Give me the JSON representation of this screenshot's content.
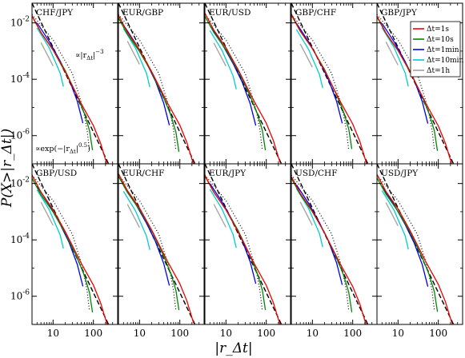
{
  "chart_data": {
    "type": "line",
    "layout": "2 rows x 5 columns of log-log panels, shared axes",
    "xlabel": "|r_Δt|",
    "ylabel": "P(X>|r_Δt|)",
    "xscale": "log",
    "yscale": "log",
    "xlim": [
      3,
      400
    ],
    "ylim": [
      1e-07,
      0.05
    ],
    "x_tick_labels": [
      "10",
      "100"
    ],
    "y_tick_labels": [
      "10^-2",
      "10^-4",
      "10^-6"
    ],
    "panels": [
      "CHF/JPY",
      "EUR/GBP",
      "EUR/USD",
      "GBP/CHF",
      "GBP/JPY",
      "GBP/USD",
      "EUR/CHF",
      "EUR/JPY",
      "USD/CHF",
      "USD/JPY"
    ],
    "legend": {
      "placement": "top-right of GBP/JPY panel",
      "entries": [
        {
          "label": "Δt=1s",
          "color": "#ee0000"
        },
        {
          "label": "Δt=10s",
          "color": "#008800"
        },
        {
          "label": "Δt=1min",
          "color": "#0000ee"
        },
        {
          "label": "Δt=10min",
          "color": "#00cccc"
        },
        {
          "label": "Δt=1h",
          "color": "#a0a0a0"
        }
      ]
    },
    "annotations": {
      "power_law": "∝|r_Δt|^-3",
      "stretched_exp": "∝exp(-|r_Δt|^0.5)"
    },
    "reference_lines": {
      "power_law": {
        "style": "dashed",
        "exponent": -3,
        "points": [
          [
            3,
            0.05
          ],
          [
            400,
            2.1e-08
          ]
        ]
      },
      "stretched_exp": {
        "style": "dotted",
        "points": [
          [
            3,
            0.02
          ],
          [
            10,
            0.0025
          ],
          [
            30,
            0.00016
          ],
          [
            50,
            1.5e-05
          ],
          [
            60,
            5e-06
          ],
          [
            70,
            1.5e-06
          ],
          [
            80,
            3e-07
          ]
        ]
      }
    },
    "series": [
      {
        "name": "Δt=1s",
        "color": "#ee0000",
        "points": [
          [
            3,
            0.02
          ],
          [
            5,
            0.005
          ],
          [
            10,
            0.0012
          ],
          [
            20,
            0.0002
          ],
          [
            50,
            1.5e-05
          ],
          [
            100,
            2.5e-06
          ],
          [
            150,
            6e-07
          ],
          [
            220,
            1e-07
          ]
        ]
      },
      {
        "name": "Δt=10s",
        "color": "#008800",
        "points": [
          [
            3,
            0.017
          ],
          [
            5,
            0.0045
          ],
          [
            10,
            0.0011
          ],
          [
            20,
            0.0002
          ],
          [
            40,
            2.5e-05
          ],
          [
            60,
            6e-06
          ],
          [
            80,
            1.5e-06
          ],
          [
            95,
            3e-07
          ]
        ]
      },
      {
        "name": "Δt=1min",
        "color": "#0000ee",
        "points": [
          [
            4,
            0.009
          ],
          [
            8,
            0.002
          ],
          [
            15,
            0.0004
          ],
          [
            25,
            9e-05
          ],
          [
            40,
            1.5e-05
          ],
          [
            55,
            2.5e-06
          ]
        ]
      },
      {
        "name": "Δt=10min",
        "color": "#00cccc",
        "points": [
          [
            4,
            0.006
          ],
          [
            8,
            0.0012
          ],
          [
            15,
            0.00015
          ],
          [
            18,
            5e-05
          ]
        ]
      },
      {
        "name": "Δt=1h",
        "color": "#a0a0a0",
        "points": [
          [
            5,
            0.002
          ],
          [
            7,
            0.0008
          ],
          [
            10,
            0.0003
          ]
        ]
      }
    ]
  }
}
